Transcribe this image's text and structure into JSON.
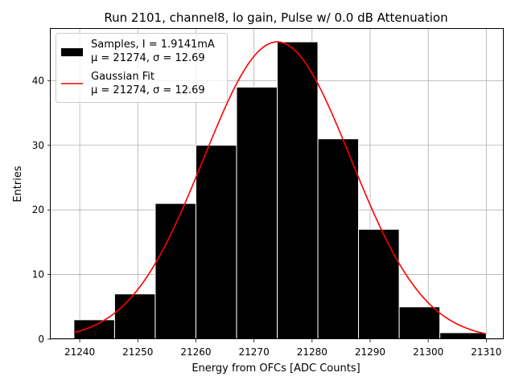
{
  "chart_data": {
    "type": "bar",
    "title": "Run 2101, channel8, lo gain, Pulse w/ 0.0 dB Attenuation",
    "xlabel": "Energy from OFCs [ADC Counts]",
    "ylabel": "Entries",
    "xlim": [
      21235,
      21313
    ],
    "ylim": [
      0,
      48
    ],
    "xticks": [
      21240,
      21250,
      21260,
      21270,
      21280,
      21290,
      21300,
      21310
    ],
    "yticks": [
      0,
      10,
      20,
      30,
      40
    ],
    "grid": true,
    "legend_position": "top-left",
    "histogram": {
      "name": "Samples",
      "legend_lines": [
        "Samples, I = 1.9141mA",
        "μ = 21274, σ = 12.69"
      ],
      "color": "#000000",
      "edge_color": "#ffffff",
      "bin_edges": [
        21239,
        21246,
        21253,
        21260,
        21267,
        21274,
        21281,
        21288,
        21295,
        21302,
        21310
      ],
      "counts": [
        3,
        7,
        21,
        30,
        39,
        46,
        31,
        17,
        5,
        1
      ]
    },
    "fit": {
      "name": "Gaussian Fit",
      "legend_lines": [
        "Gaussian Fit",
        "μ = 21274, σ = 12.69"
      ],
      "color": "#ff0000",
      "mu": 21274,
      "sigma": 12.69,
      "amplitude": 46,
      "x_range": [
        21239,
        21310
      ]
    }
  }
}
